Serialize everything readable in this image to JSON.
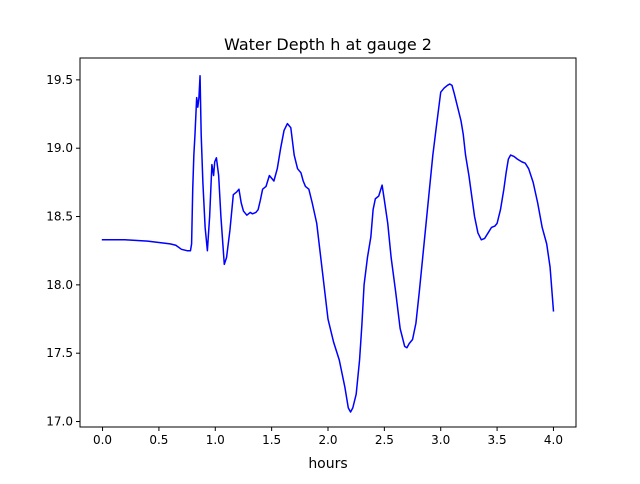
{
  "chart_data": {
    "type": "line",
    "title": "Water Depth h at gauge 2",
    "xlabel": "hours",
    "ylabel": "",
    "xlim": [
      -0.2,
      4.2
    ],
    "ylim": [
      16.96,
      19.66
    ],
    "grid": false,
    "x_ticks": [
      0.0,
      0.5,
      1.0,
      1.5,
      2.0,
      2.5,
      3.0,
      3.5,
      4.0
    ],
    "x_tick_labels": [
      "0.0",
      "0.5",
      "1.0",
      "1.5",
      "2.0",
      "2.5",
      "3.0",
      "3.5",
      "4.0"
    ],
    "y_ticks": [
      17.0,
      17.5,
      18.0,
      18.5,
      19.0,
      19.5
    ],
    "y_tick_labels": [
      "17.0",
      "17.5",
      "18.0",
      "18.5",
      "19.0",
      "19.5"
    ],
    "series": [
      {
        "color": "#0000ff",
        "x": [
          0.0,
          0.2,
          0.4,
          0.5,
          0.6,
          0.65,
          0.7,
          0.75,
          0.78,
          0.79,
          0.8,
          0.81,
          0.82,
          0.835,
          0.845,
          0.855,
          0.865,
          0.875,
          0.89,
          0.91,
          0.93,
          0.95,
          0.97,
          0.985,
          0.995,
          1.01,
          1.03,
          1.05,
          1.08,
          1.1,
          1.13,
          1.16,
          1.19,
          1.21,
          1.22,
          1.23,
          1.25,
          1.28,
          1.31,
          1.33,
          1.36,
          1.38,
          1.4,
          1.42,
          1.45,
          1.48,
          1.5,
          1.52,
          1.55,
          1.58,
          1.61,
          1.64,
          1.67,
          1.7,
          1.73,
          1.76,
          1.78,
          1.8,
          1.83,
          1.86,
          1.9,
          1.95,
          2.0,
          2.05,
          2.1,
          2.15,
          2.18,
          2.2,
          2.22,
          2.25,
          2.28,
          2.3,
          2.32,
          2.35,
          2.38,
          2.4,
          2.42,
          2.45,
          2.48,
          2.5,
          2.53,
          2.56,
          2.6,
          2.64,
          2.68,
          2.7,
          2.72,
          2.75,
          2.78,
          2.81,
          2.84,
          2.87,
          2.9,
          2.93,
          2.96,
          3.0,
          3.03,
          3.06,
          3.08,
          3.1,
          3.12,
          3.15,
          3.18,
          3.2,
          3.22,
          3.25,
          3.28,
          3.3,
          3.33,
          3.36,
          3.39,
          3.42,
          3.45,
          3.48,
          3.5,
          3.53,
          3.56,
          3.58,
          3.6,
          3.62,
          3.65,
          3.68,
          3.7,
          3.72,
          3.75,
          3.78,
          3.82,
          3.86,
          3.9,
          3.94,
          3.97,
          4.0
        ],
        "y": [
          18.33,
          18.33,
          18.32,
          18.31,
          18.3,
          18.29,
          18.26,
          18.25,
          18.25,
          18.3,
          18.7,
          18.95,
          19.1,
          19.37,
          19.3,
          19.37,
          19.53,
          19.1,
          18.75,
          18.42,
          18.25,
          18.5,
          18.88,
          18.8,
          18.9,
          18.93,
          18.8,
          18.5,
          18.15,
          18.2,
          18.4,
          18.66,
          18.68,
          18.7,
          18.65,
          18.6,
          18.54,
          18.51,
          18.53,
          18.52,
          18.53,
          18.55,
          18.62,
          18.7,
          18.72,
          18.8,
          18.78,
          18.76,
          18.85,
          19.0,
          19.13,
          19.18,
          19.15,
          18.95,
          18.85,
          18.82,
          18.76,
          18.72,
          18.7,
          18.6,
          18.45,
          18.1,
          17.75,
          17.58,
          17.45,
          17.25,
          17.1,
          17.07,
          17.1,
          17.2,
          17.45,
          17.7,
          18.0,
          18.2,
          18.35,
          18.55,
          18.63,
          18.65,
          18.73,
          18.62,
          18.45,
          18.2,
          17.95,
          17.68,
          17.55,
          17.54,
          17.57,
          17.6,
          17.72,
          17.95,
          18.2,
          18.45,
          18.7,
          18.95,
          19.15,
          19.41,
          19.44,
          19.46,
          19.47,
          19.46,
          19.4,
          19.3,
          19.2,
          19.1,
          18.95,
          18.8,
          18.62,
          18.5,
          18.38,
          18.33,
          18.34,
          18.38,
          18.42,
          18.43,
          18.45,
          18.55,
          18.7,
          18.82,
          18.92,
          18.95,
          18.94,
          18.92,
          18.91,
          18.9,
          18.89,
          18.85,
          18.75,
          18.6,
          18.42,
          18.3,
          18.13,
          17.81
        ]
      }
    ]
  }
}
